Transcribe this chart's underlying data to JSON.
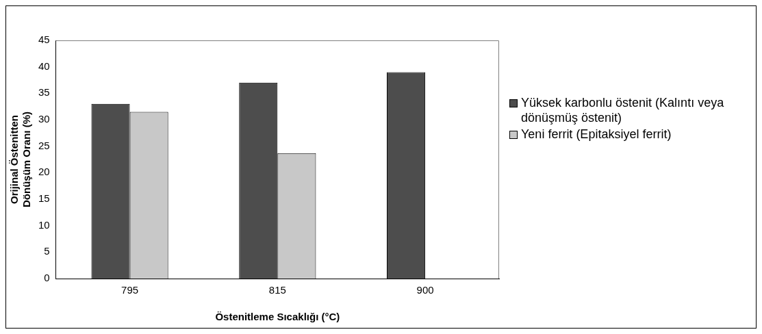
{
  "chart_data": {
    "type": "bar",
    "xlabel": "Östenitleme Sıcaklığı (°C)",
    "ylabel": "Orijinal Östenitten Dönüşüm Oranı (%)",
    "categories": [
      "795",
      "815",
      "900"
    ],
    "series": [
      {
        "name": "Yüksek karbonlu östenit (Kalıntı veya dönüşmüş östenit)",
        "color": "#4d4d4d",
        "values": [
          33,
          37,
          39
        ]
      },
      {
        "name": "Yeni ferrit (Epitaksiyel ferrit)",
        "color": "#c8c8c8",
        "values": [
          31.5,
          23.7,
          null
        ]
      }
    ],
    "ylim": [
      0,
      45
    ],
    "yticks": [
      0,
      5,
      10,
      15,
      20,
      25,
      30,
      35,
      40,
      45
    ],
    "grid": false,
    "legend": "right"
  }
}
